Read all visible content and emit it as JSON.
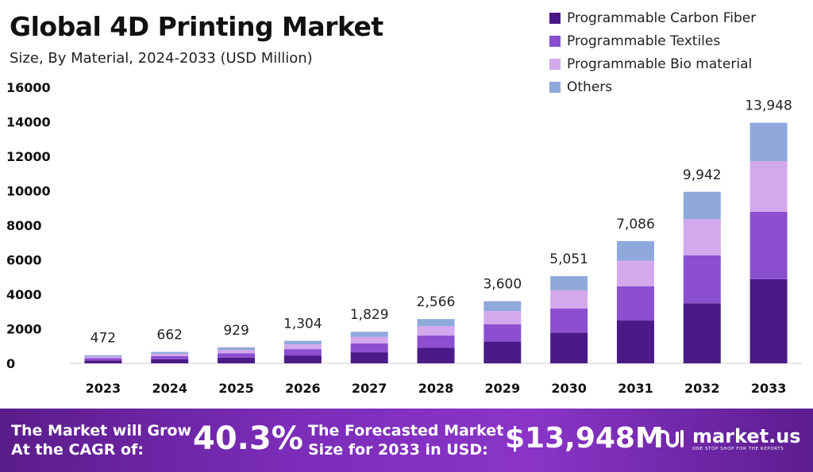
{
  "header": {
    "title": "Global 4D Printing Market",
    "subtitle": "Size, By Material, 2024-2033 (USD Million)"
  },
  "legend": {
    "items": [
      {
        "label": "Programmable Carbon Fiber",
        "color": "#4b1a88"
      },
      {
        "label": "Programmable Textiles",
        "color": "#8b4fd0"
      },
      {
        "label": "Programmable Bio material",
        "color": "#d3a8ec"
      },
      {
        "label": "Others",
        "color": "#8fa9dc"
      }
    ]
  },
  "chart_data": {
    "type": "bar",
    "stacked": true,
    "title": "Global 4D Printing Market",
    "subtitle": "Size, By Material, 2024-2033 (USD Million)",
    "categories": [
      "2023",
      "2024",
      "2025",
      "2026",
      "2027",
      "2028",
      "2029",
      "2030",
      "2031",
      "2032",
      "2033"
    ],
    "totals": [
      472,
      662,
      929,
      1304,
      1829,
      2566,
      3600,
      5051,
      7086,
      9942,
      13948
    ],
    "total_labels": [
      "472",
      "662",
      "929",
      "1,304",
      "1,829",
      "2,566",
      "3,600",
      "5,051",
      "7,086",
      "9,942",
      "13,948"
    ],
    "series": [
      {
        "name": "Programmable Carbon Fiber",
        "color": "#4b1a88",
        "values": [
          165,
          232,
          325,
          456,
          640,
          898,
          1260,
          1768,
          2480,
          3480,
          4882
        ]
      },
      {
        "name": "Programmable Textiles",
        "color": "#8b4fd0",
        "values": [
          132,
          185,
          260,
          365,
          512,
          718,
          1008,
          1414,
          1984,
          2784,
          3905
        ]
      },
      {
        "name": "Programmable Bio material",
        "color": "#d3a8ec",
        "values": [
          99,
          139,
          195,
          274,
          384,
          539,
          756,
          1061,
          1488,
          2088,
          2929
        ]
      },
      {
        "name": "Others",
        "color": "#8fa9dc",
        "values": [
          76,
          106,
          149,
          209,
          293,
          411,
          576,
          808,
          1134,
          1590,
          2232
        ]
      }
    ],
    "yticks": [
      0,
      2000,
      4000,
      6000,
      8000,
      10000,
      12000,
      14000,
      16000
    ],
    "ylim": [
      0,
      16000
    ],
    "xlabel": "",
    "ylabel": "",
    "grid": false,
    "legend_position": "top-right"
  },
  "banner": {
    "cagr_text_line1": "The Market will Grow",
    "cagr_text_line2": "At the CAGR of:",
    "cagr_value": "40.3%",
    "forecast_text_line1": "The Forecasted Market",
    "forecast_text_line2": "Size for 2033 in USD:",
    "forecast_value": "$13,948M",
    "brand_name": "market.us",
    "brand_tagline": "ONE STOP SHOP FOR THE REPORTS"
  }
}
